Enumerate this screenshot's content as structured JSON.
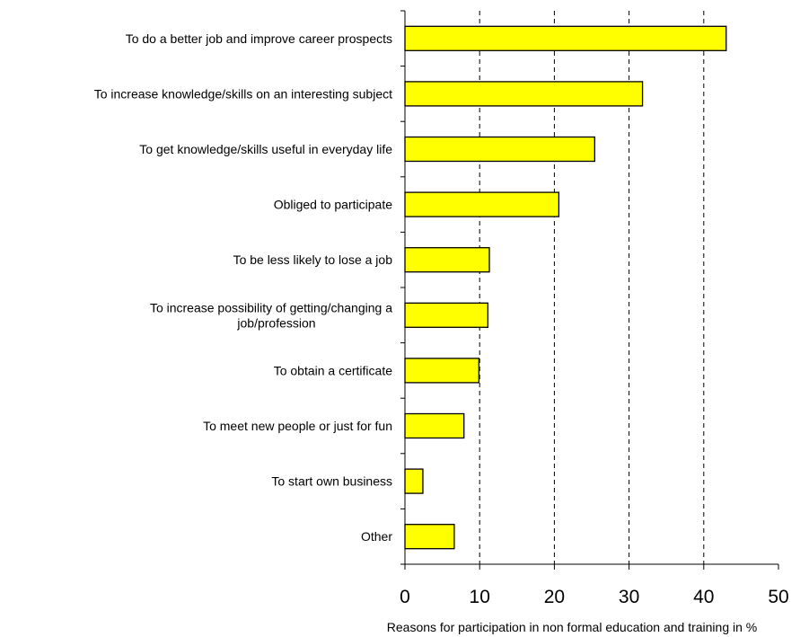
{
  "chart_data": {
    "type": "bar",
    "orientation": "horizontal",
    "title": "",
    "xlabel": "Reasons for participation in non formal education and training in %",
    "ylabel": "",
    "xlim": [
      0,
      50
    ],
    "xticks": [
      0,
      10,
      20,
      30,
      40,
      50
    ],
    "grid": "vertical-dashed",
    "legend": "none",
    "bar_color": "#ffff00",
    "bar_edge_color": "#000000",
    "categories": [
      "To do a better job and improve career prospects",
      "To increase knowledge/skills on an interesting subject",
      "To get knowledge/skills useful in everyday life",
      "Obliged to participate",
      "To be less likely to lose a job",
      "To increase possibility of getting/changing a job/profession",
      "To obtain a certificate",
      "To meet new people or just for fun",
      "To start own business",
      "Other"
    ],
    "label_lines": [
      [
        "To do a better job and improve career prospects"
      ],
      [
        "To increase knowledge/skills on an interesting subject"
      ],
      [
        "To get knowledge/skills useful in everyday life"
      ],
      [
        "Obliged to participate"
      ],
      [
        "To be less likely to lose a job"
      ],
      [
        "To increase possibility of getting/changing a",
        "job/profession"
      ],
      [
        "To obtain a certificate"
      ],
      [
        "To meet new people or just for fun"
      ],
      [
        "To start own business"
      ],
      [
        "Other"
      ]
    ],
    "values": [
      43.0,
      31.8,
      25.4,
      20.6,
      11.3,
      11.1,
      9.9,
      7.9,
      2.4,
      6.6
    ]
  }
}
